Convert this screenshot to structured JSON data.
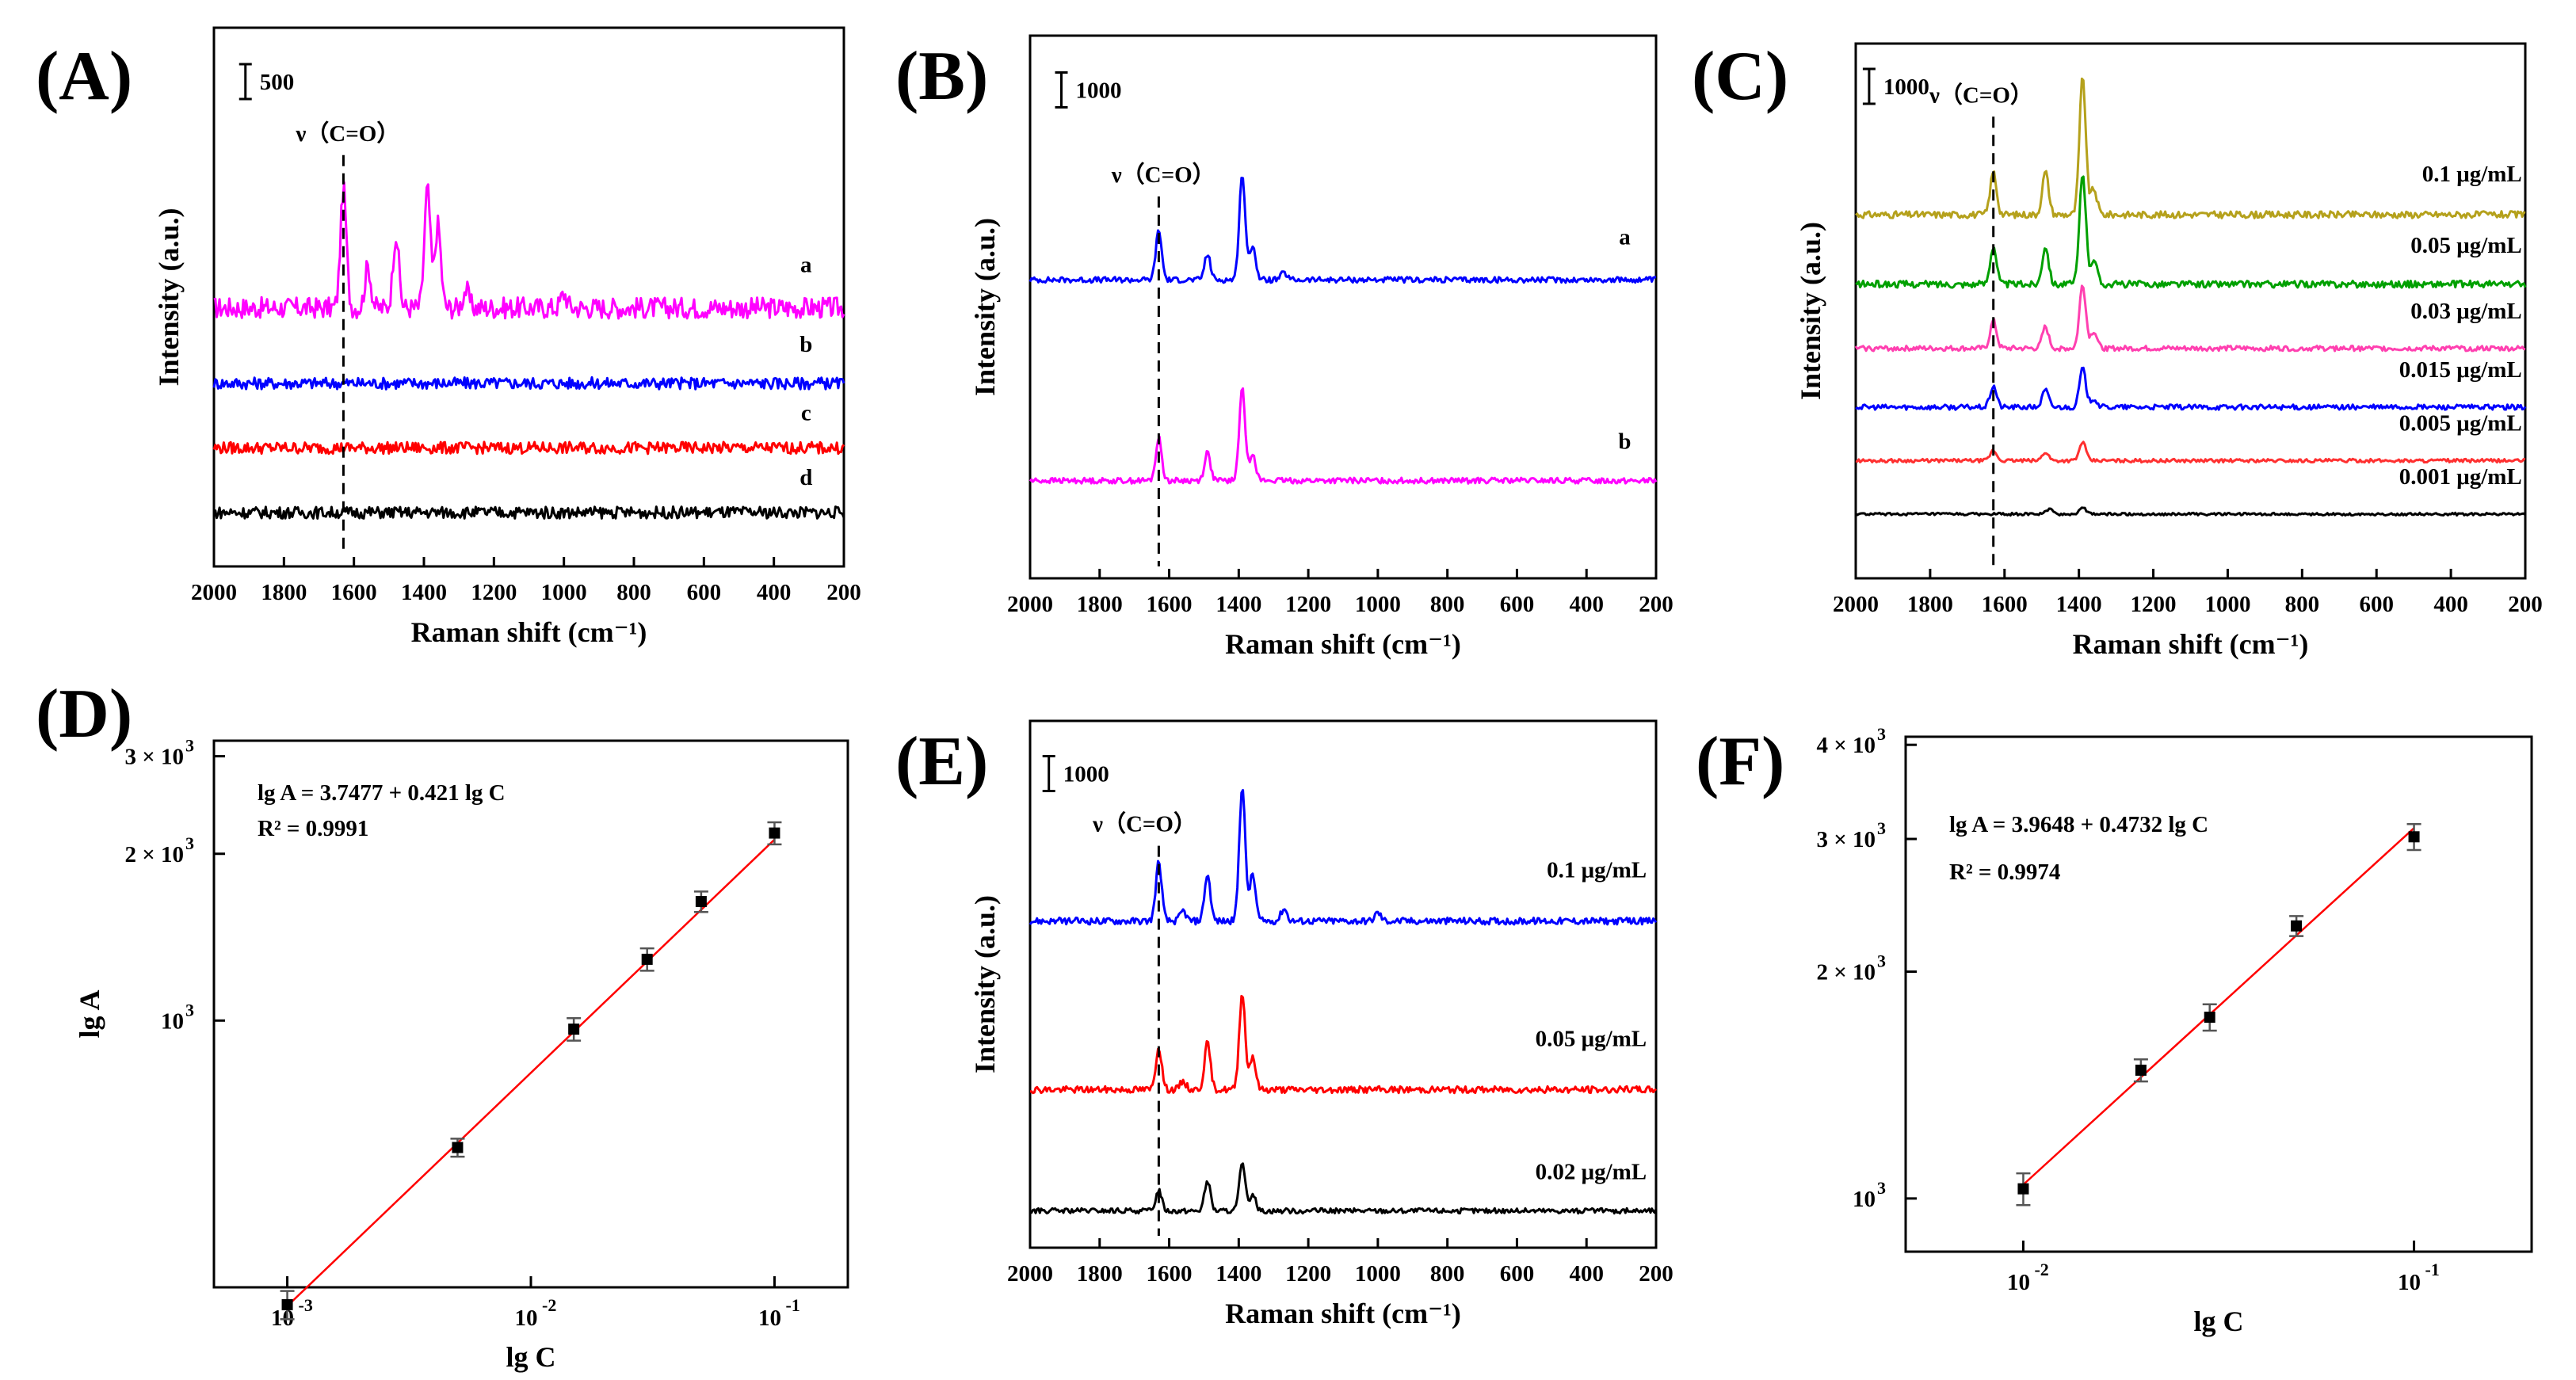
{
  "figure": {
    "panel_labels": [
      "(A)",
      "(B)",
      "(C)",
      "(D)",
      "(E)",
      "(F)"
    ]
  },
  "chart_data": [
    {
      "panel": "(A)",
      "type": "line",
      "xlabel": "Raman shift (cm⁻¹)",
      "ylabel": "Intensity (a.u.)",
      "xlim": [
        2000,
        200
      ],
      "xticks": [
        2000,
        1800,
        1600,
        1400,
        1200,
        1000,
        800,
        600,
        400,
        200
      ],
      "scale_bar": "500",
      "annotation": "ν（C=O）",
      "marker_x": 1630,
      "series": [
        {
          "name": "a",
          "color": "#ff00ff",
          "peaks": [
            [
              1630,
              1.0
            ],
            [
              1560,
              0.35
            ],
            [
              1480,
              0.62
            ],
            [
              1390,
              1.0
            ],
            [
              1360,
              0.7
            ],
            [
              1280,
              0.15
            ],
            [
              1000,
              0.12
            ]
          ],
          "noise": 0.09
        },
        {
          "name": "b",
          "color": "#0000ff",
          "peaks": [],
          "noise": 0.05
        },
        {
          "name": "c",
          "color": "#ff0000",
          "peaks": [],
          "noise": 0.05
        },
        {
          "name": "d",
          "color": "#000000",
          "peaks": [],
          "noise": 0.05
        }
      ]
    },
    {
      "panel": "(B)",
      "type": "line",
      "xlabel": "Raman shift (cm⁻¹)",
      "ylabel": "Intensity (a.u.)",
      "xlim": [
        2000,
        200
      ],
      "xticks": [
        2000,
        1800,
        1600,
        1400,
        1200,
        1000,
        800,
        600,
        400,
        200
      ],
      "scale_bar": "1000",
      "annotation": "ν（C=O）",
      "marker_x": 1630,
      "series": [
        {
          "name": "a",
          "color": "#0000ff",
          "peaks": [
            [
              1630,
              0.35
            ],
            [
              1490,
              0.18
            ],
            [
              1390,
              0.75
            ],
            [
              1360,
              0.25
            ],
            [
              1270,
              0.05
            ]
          ],
          "noise": 0.02
        },
        {
          "name": "b",
          "color": "#ff00ff",
          "peaks": [
            [
              1630,
              0.3
            ],
            [
              1490,
              0.2
            ],
            [
              1390,
              0.65
            ],
            [
              1360,
              0.2
            ]
          ],
          "noise": 0.02
        }
      ]
    },
    {
      "panel": "(C)",
      "type": "line",
      "xlabel": "Raman shift (cm⁻¹)",
      "ylabel": "Intensity (a.u.)",
      "xlim": [
        2000,
        200
      ],
      "xticks": [
        2000,
        1800,
        1600,
        1400,
        1200,
        1000,
        800,
        600,
        400,
        200
      ],
      "scale_bar": "1000",
      "annotation": "ν（C=O）",
      "marker_x": 1630,
      "series": [
        {
          "name": "0.1 μg/mL",
          "color": "#b5a11c",
          "peaks": [
            [
              1630,
              0.5
            ],
            [
              1490,
              0.5
            ],
            [
              1390,
              1.6
            ],
            [
              1360,
              0.3
            ]
          ],
          "noise": 0.04
        },
        {
          "name": "0.05 μg/mL",
          "color": "#00a000",
          "peaks": [
            [
              1630,
              0.45
            ],
            [
              1490,
              0.45
            ],
            [
              1390,
              1.3
            ],
            [
              1360,
              0.3
            ]
          ],
          "noise": 0.04
        },
        {
          "name": "0.03 μg/mL",
          "color": "#ff40b0",
          "peaks": [
            [
              1630,
              0.32
            ],
            [
              1490,
              0.25
            ],
            [
              1390,
              0.75
            ],
            [
              1360,
              0.2
            ]
          ],
          "noise": 0.03
        },
        {
          "name": "0.015 μg/mL",
          "color": "#0000ff",
          "peaks": [
            [
              1630,
              0.25
            ],
            [
              1490,
              0.2
            ],
            [
              1390,
              0.45
            ],
            [
              1360,
              0.1
            ]
          ],
          "noise": 0.03
        },
        {
          "name": "0.005 μg/mL",
          "color": "#ff3030",
          "peaks": [
            [
              1630,
              0.12
            ],
            [
              1490,
              0.1
            ],
            [
              1390,
              0.22
            ]
          ],
          "noise": 0.02
        },
        {
          "name": "0.001 μg/mL",
          "color": "#000000",
          "peaks": [
            [
              1480,
              0.06
            ],
            [
              1390,
              0.08
            ]
          ],
          "noise": 0.015
        }
      ]
    },
    {
      "panel": "(D)",
      "type": "scatter",
      "xlabel": "lg C",
      "ylabel": "lg A",
      "xscale": "log",
      "yscale": "log",
      "xlim": [
        0.0005,
        0.2
      ],
      "ylim": [
        330,
        3200
      ],
      "xticks": [
        {
          "v": 0.001,
          "exp": "-3"
        },
        {
          "v": 0.01,
          "exp": "-2"
        },
        {
          "v": 0.1,
          "exp": "-1"
        }
      ],
      "yticks": [
        {
          "v": 1000,
          "mant": "",
          "exp": "3"
        },
        {
          "v": 2000,
          "mant": "2 × ",
          "exp": "3"
        },
        {
          "v": 3000,
          "mant": "3 × ",
          "exp": "3"
        }
      ],
      "equation": "lg A = 3.7477 + 0.421 lg C",
      "r2": "R² = 0.9991",
      "fit": {
        "intercept": 3.7477,
        "slope": 0.421
      },
      "points": [
        {
          "x": 0.001,
          "y": 307,
          "err": 18
        },
        {
          "x": 0.005,
          "y": 590,
          "err": 22
        },
        {
          "x": 0.015,
          "y": 965,
          "err": 45
        },
        {
          "x": 0.03,
          "y": 1290,
          "err": 60
        },
        {
          "x": 0.05,
          "y": 1640,
          "err": 70
        },
        {
          "x": 0.1,
          "y": 2180,
          "err": 100
        }
      ]
    },
    {
      "panel": "(E)",
      "type": "line",
      "xlabel": "Raman shift (cm⁻¹)",
      "ylabel": "Intensity (a.u.)",
      "xlim": [
        2000,
        200
      ],
      "xticks": [
        2000,
        1800,
        1600,
        1400,
        1200,
        1000,
        800,
        600,
        400,
        200
      ],
      "scale_bar": "1000",
      "annotation": "ν（C=O）",
      "marker_x": 1630,
      "series": [
        {
          "name": "0.1 μg/mL",
          "color": "#0000ff",
          "peaks": [
            [
              1630,
              0.7
            ],
            [
              1560,
              0.12
            ],
            [
              1490,
              0.55
            ],
            [
              1390,
              1.6
            ],
            [
              1360,
              0.55
            ],
            [
              1270,
              0.15
            ],
            [
              1000,
              0.1
            ]
          ],
          "noise": 0.04
        },
        {
          "name": "0.05 μg/mL",
          "color": "#ff0000",
          "peaks": [
            [
              1630,
              0.5
            ],
            [
              1560,
              0.1
            ],
            [
              1490,
              0.55
            ],
            [
              1390,
              1.15
            ],
            [
              1360,
              0.4
            ]
          ],
          "noise": 0.04
        },
        {
          "name": "0.02 μg/mL",
          "color": "#000000",
          "peaks": [
            [
              1630,
              0.25
            ],
            [
              1490,
              0.35
            ],
            [
              1390,
              0.55
            ],
            [
              1360,
              0.2
            ]
          ],
          "noise": 0.03
        }
      ]
    },
    {
      "panel": "(F)",
      "type": "scatter",
      "xlabel": "lg C",
      "ylabel": "",
      "xscale": "log",
      "yscale": "log",
      "xlim": [
        0.005,
        0.2
      ],
      "ylim": [
        850,
        4100
      ],
      "xticks": [
        {
          "v": 0.01,
          "exp": "-2"
        },
        {
          "v": 0.1,
          "exp": "-1"
        }
      ],
      "yticks": [
        {
          "v": 1000,
          "mant": "",
          "exp": "3"
        },
        {
          "v": 2000,
          "mant": "2 × ",
          "exp": "3"
        },
        {
          "v": 3000,
          "mant": "3 × ",
          "exp": "3"
        },
        {
          "v": 4000,
          "mant": "4 × ",
          "exp": "3"
        }
      ],
      "equation": "lg A = 3.9648 + 0.4732 lg C",
      "r2": "R² = 0.9974",
      "fit": {
        "intercept": 3.9648,
        "slope": 0.4732
      },
      "points": [
        {
          "x": 0.01,
          "y": 1030,
          "err": 50
        },
        {
          "x": 0.02,
          "y": 1480,
          "err": 50
        },
        {
          "x": 0.03,
          "y": 1740,
          "err": 70
        },
        {
          "x": 0.05,
          "y": 2300,
          "err": 70
        },
        {
          "x": 0.1,
          "y": 3020,
          "err": 120
        }
      ]
    }
  ]
}
